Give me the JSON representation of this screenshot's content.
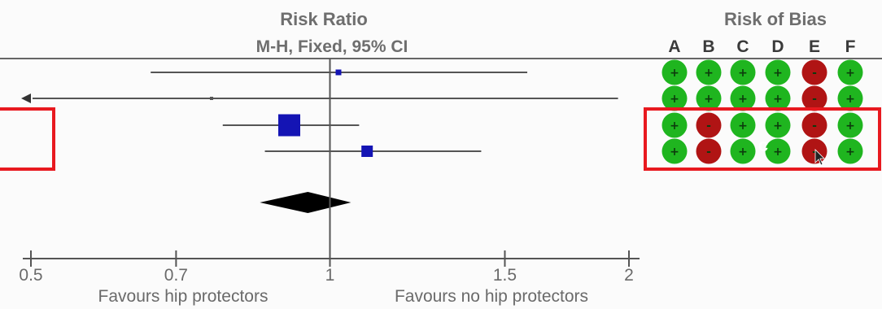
{
  "header": {
    "measure": "Risk Ratio",
    "method": "M-H, Fixed, 95% CI",
    "rob_title": "Risk of Bias"
  },
  "chart_data": {
    "type": "forest",
    "scale": "log",
    "x_ticks": [
      0.5,
      0.7,
      1,
      1.5,
      2
    ],
    "x_tick_labels": [
      "0.5",
      "0.7",
      "1",
      "1.5",
      "2"
    ],
    "xlim": [
      0.5,
      2
    ],
    "left_label": "Favours hip protectors",
    "right_label": "Favours no hip protectors",
    "studies": [
      {
        "rr": 1.02,
        "lo": 0.66,
        "hi": 1.58,
        "weight": "small"
      },
      {
        "rr": 0.76,
        "lo": 0.5,
        "hi": 1.95,
        "arrow_left": true,
        "weight": "tiny"
      },
      {
        "rr": 0.91,
        "lo": 0.78,
        "hi": 1.07,
        "weight": "large"
      },
      {
        "rr": 1.09,
        "lo": 0.86,
        "hi": 1.42,
        "weight": "medium"
      }
    ],
    "pooled": {
      "rr": 0.95,
      "lo": 0.85,
      "hi": 1.05
    }
  },
  "rob": {
    "columns": [
      "A",
      "B",
      "C",
      "D",
      "E",
      "F"
    ],
    "rows": [
      [
        "+",
        "+",
        "+",
        "+",
        "-",
        "+"
      ],
      [
        "+",
        "+",
        "+",
        "+",
        "-",
        "+"
      ],
      [
        "+",
        "-",
        "+",
        "+",
        "-",
        "+"
      ],
      [
        "+",
        "-",
        "+",
        "+",
        "-",
        "+"
      ]
    ],
    "low_color": "#1fb51f",
    "high_color": "#b01414"
  },
  "annotation": {
    "mark": "c"
  },
  "colors": {
    "study_square": "#1414b4",
    "diamond": "#000000",
    "highlight": "#e8191f",
    "lines": "#555555"
  }
}
